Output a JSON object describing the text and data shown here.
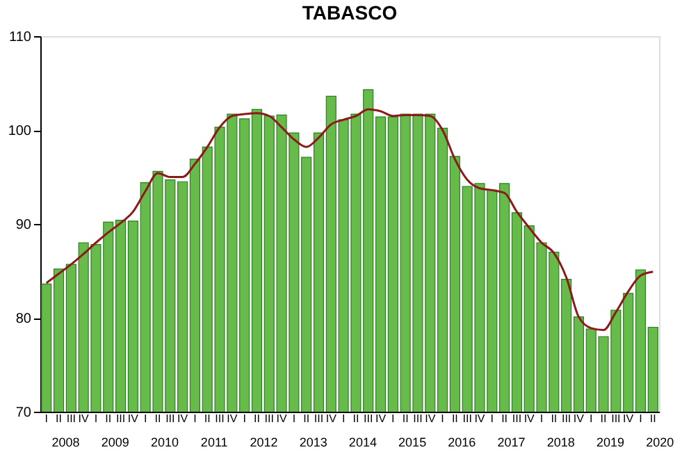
{
  "chart_data": {
    "type": "bar",
    "title": "TABASCO",
    "categories": [
      "I",
      "II",
      "III",
      "IV",
      "I",
      "II",
      "III",
      "IV",
      "I",
      "II",
      "III",
      "IV",
      "I",
      "II",
      "III",
      "IV",
      "I",
      "II",
      "III",
      "IV",
      "I",
      "II",
      "III",
      "IV",
      "I",
      "II",
      "III",
      "IV",
      "I",
      "II",
      "III",
      "IV",
      "I",
      "II",
      "III",
      "IV",
      "I",
      "II",
      "III",
      "IV",
      "I",
      "II",
      "III",
      "IV",
      "I",
      "II",
      "III",
      "IV",
      "I",
      "II"
    ],
    "annotations": [
      "2008",
      "2009",
      "2010",
      "2011",
      "2012",
      "2013",
      "2014",
      "2015",
      "2016",
      "2017",
      "2018",
      "2019",
      "2020"
    ],
    "series": [
      {
        "color": "#66bb4a",
        "values": [
          83.6,
          85.2,
          85.7,
          88.0,
          87.8,
          90.2,
          90.4,
          90.3,
          94.4,
          95.6,
          94.7,
          94.5,
          96.9,
          98.2,
          100.3,
          101.7,
          101.2,
          102.2,
          101.5,
          101.6,
          99.7,
          97.1,
          99.7,
          103.6,
          101.1,
          101.7,
          104.3,
          101.4,
          101.4,
          101.7,
          101.7,
          101.7,
          100.2,
          97.2,
          94.0,
          94.3,
          93.6,
          94.3,
          91.2,
          89.8,
          88.0,
          87.0,
          84.1,
          80.1,
          78.8,
          78.0,
          80.8,
          82.6,
          85.1,
          79.0
        ]
      },
      {
        "type": "line",
        "color": "#8b1a1a",
        "values": [
          83.7,
          84.7,
          85.7,
          86.8,
          88.0,
          89.1,
          90.1,
          91.3,
          93.5,
          95.4,
          95.0,
          95.0,
          96.4,
          98.2,
          100.3,
          101.5,
          101.7,
          101.8,
          101.5,
          100.3,
          99.0,
          98.2,
          99.2,
          100.6,
          101.1,
          101.5,
          102.2,
          102.0,
          101.5,
          101.6,
          101.6,
          101.5,
          100.0,
          96.9,
          94.7,
          93.8,
          93.6,
          93.3,
          91.3,
          89.6,
          88.0,
          86.9,
          84.3,
          80.1,
          78.9,
          78.7,
          80.6,
          82.8,
          84.5,
          84.9
        ]
      }
    ],
    "ylim": [
      70,
      110
    ],
    "yticks": [
      70,
      80,
      90,
      100,
      110
    ],
    "grid": false
  }
}
